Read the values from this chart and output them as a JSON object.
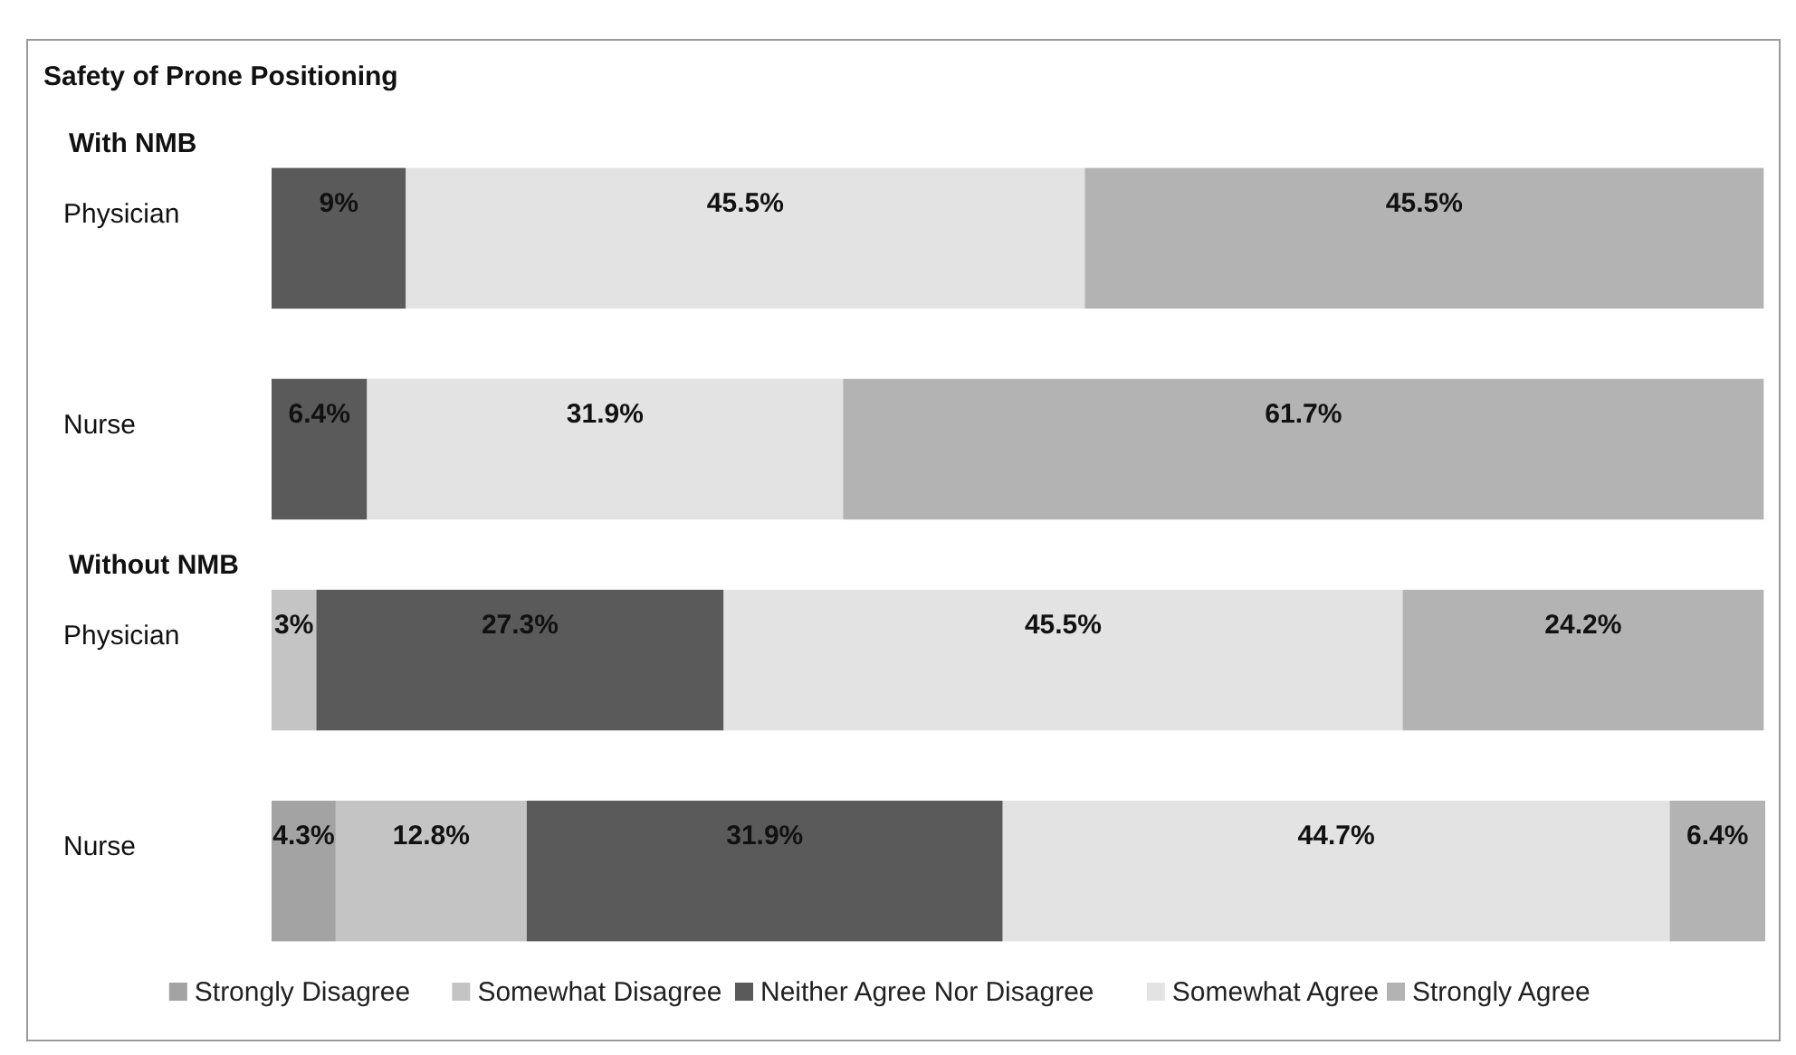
{
  "chart_data": {
    "type": "bar",
    "orientation": "horizontal",
    "stacked": true,
    "title": "Safety of Prone Positioning",
    "categories": [
      "Physician",
      "Nurse",
      "Physician",
      "Nurse"
    ],
    "tick_labels": "y",
    "legend": "bottom",
    "annotations": [
      "With NMB",
      "Without NMB"
    ],
    "series": [
      {
        "name": "Strongly Disagree",
        "color": "#a3a3a3",
        "values": [
          null,
          null,
          null,
          4.3
        ],
        "value_labels": [
          null,
          null,
          null,
          "4.3%"
        ]
      },
      {
        "name": "Somewhat Disagree",
        "color": "#c4c4c4",
        "values": [
          null,
          null,
          3,
          12.8
        ],
        "value_labels": [
          null,
          null,
          "3%",
          "12.8%"
        ]
      },
      {
        "name": "Neither Agree Nor Disagree",
        "color": "#5a5a5a",
        "values": [
          9,
          6.4,
          27.3,
          31.9
        ],
        "value_labels": [
          "9%",
          "6.4%",
          "27.3%",
          "31.9%"
        ]
      },
      {
        "name": "Somewhat Agree",
        "color": "#e3e3e3",
        "values": [
          45.5,
          31.9,
          45.5,
          44.7
        ],
        "value_labels": [
          "45.5%",
          "31.9%",
          "45.5%",
          "44.7%"
        ]
      },
      {
        "name": "Strongly Agree",
        "color": "#b3b3b3",
        "values": [
          45.5,
          61.7,
          24.2,
          6.4
        ],
        "value_labels": [
          "45.5%",
          "61.7%",
          "24.2%",
          "6.4%"
        ]
      }
    ]
  }
}
